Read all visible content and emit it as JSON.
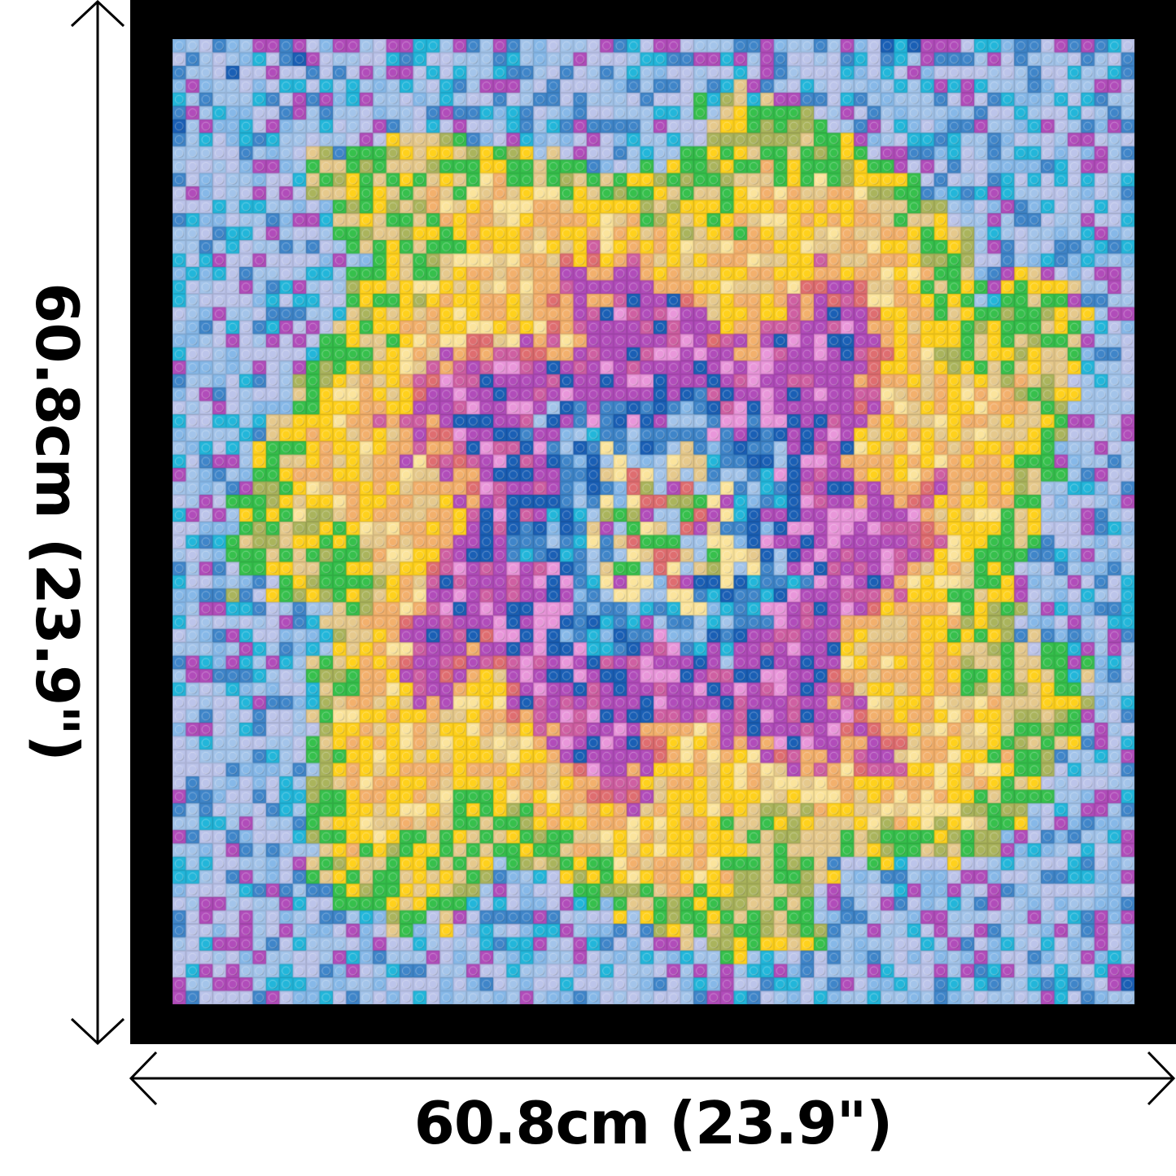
{
  "dimensions": {
    "width_label": "60.8cm (23.9\")",
    "height_label": "60.8cm (23.9\")"
  },
  "mosaic": {
    "studs_per_side": 72,
    "pattern": "tie-dye spiral",
    "frame_color": "#000000",
    "palette": {
      "light_blue": "#a3c4ea",
      "lavender": "#bcc4ea",
      "sky": "#86b8e8",
      "cyan": "#22b6da",
      "medium_blue": "#3f85c9",
      "dark_blue": "#1a5fb5",
      "green": "#36c04c",
      "olive": "#aab45c",
      "yellow": "#ffd11c",
      "pale_yellow": "#fbe49c",
      "tan": "#e6c98c",
      "orange": "#f3b06c",
      "coral": "#df6d70",
      "magenta": "#b14cba",
      "pink": "#cf5fa2",
      "light_pink": "#e996da"
    }
  }
}
